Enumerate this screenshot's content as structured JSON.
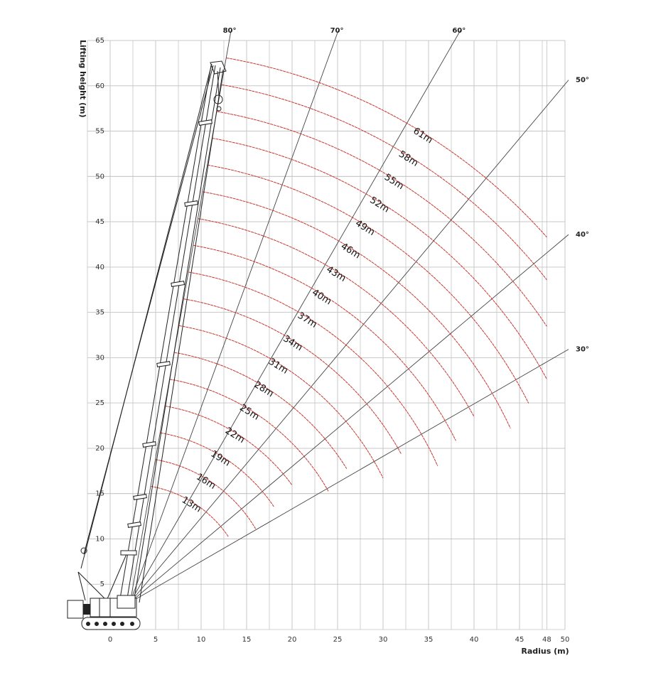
{
  "chart_data": {
    "type": "working-range",
    "x_label": "Radius (m)",
    "y_label": "Lifting height (m)",
    "xlim": [
      -2.5,
      50
    ],
    "ylim": [
      0,
      65
    ],
    "xticks": [
      0,
      5,
      10,
      15,
      20,
      25,
      30,
      35,
      40,
      45,
      48,
      50
    ],
    "yticks": [
      5,
      10,
      15,
      20,
      25,
      30,
      35,
      40,
      45,
      50,
      55,
      60,
      65
    ],
    "grid": true,
    "x_grid_step": 2.5,
    "grid_color": "#c4c4c4",
    "color": "#c8382f",
    "boom_lengths": {
      "labels": [
        "13m",
        "16m",
        "19m",
        "22m",
        "25m",
        "28m",
        "31m",
        "34m",
        "37m",
        "40m",
        "43m",
        "46m",
        "49m",
        "52m",
        "55m",
        "58m",
        "61m"
      ],
      "values": [
        13,
        16,
        19,
        22,
        25,
        28,
        31,
        34,
        37,
        40,
        43,
        46,
        49,
        52,
        55,
        58,
        61
      ],
      "end_radius": [
        13,
        16,
        18,
        20,
        24,
        26,
        30,
        32,
        36,
        38,
        40,
        44,
        46,
        48,
        48,
        48,
        48
      ]
    },
    "angles": {
      "labels": [
        "80°",
        "70°",
        "60°",
        "50°",
        "40°",
        "30°"
      ],
      "values": [
        80,
        70,
        60,
        50,
        40,
        30
      ]
    }
  }
}
